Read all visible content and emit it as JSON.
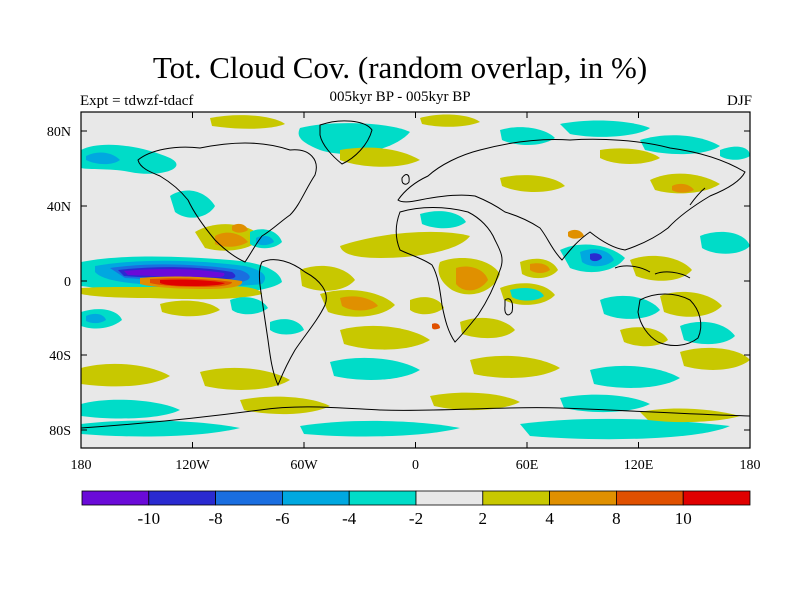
{
  "header": {
    "title": "Tot. Cloud Cov. (random overlap, in %)",
    "subtitle": "005kyr BP - 005kyr BP",
    "experiment": "Expt = tdwzf-tdacf",
    "season": "DJF"
  },
  "axes": {
    "lon_ticks": [
      "180",
      "120W",
      "60W",
      "0",
      "60E",
      "120E",
      "180"
    ],
    "lat_ticks": [
      "80N",
      "40N",
      "0",
      "40S",
      "80S"
    ]
  },
  "colorbar": {
    "colors": [
      "#6a0ad8",
      "#2a2ad0",
      "#1a6ee0",
      "#00a8e0",
      "#00dcc8",
      "#e8e8e8",
      "#c8c800",
      "#e09000",
      "#e05000",
      "#e00000"
    ],
    "labels": [
      "-10",
      "-8",
      "-6",
      "-4",
      "-2",
      "2",
      "4",
      "8",
      "10"
    ]
  },
  "map_style": {
    "background": "#e8e8e8",
    "coastline": "#000000"
  }
}
